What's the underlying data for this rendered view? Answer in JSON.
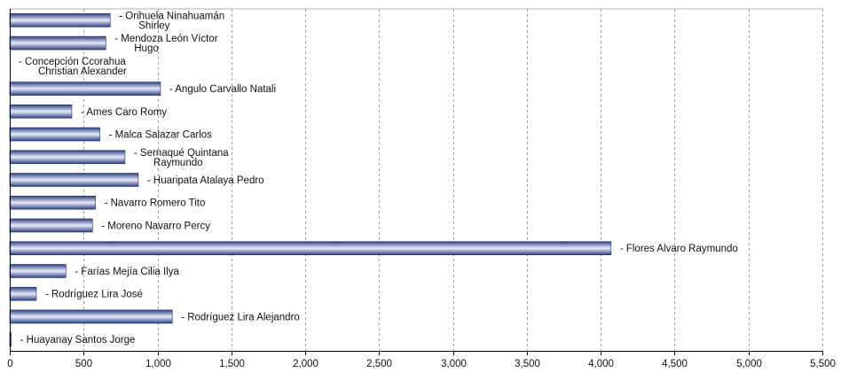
{
  "chart_data": {
    "type": "bar",
    "orientation": "horizontal",
    "title": "",
    "xlabel": "",
    "ylabel": "",
    "xlim": [
      0,
      5500
    ],
    "xticks": [
      0,
      500,
      1000,
      1500,
      2000,
      2500,
      3000,
      3500,
      4000,
      4500,
      5000,
      5500
    ],
    "xtick_labels": [
      "0",
      "500",
      "1,000",
      "1,500",
      "2,000",
      "2,500",
      "3,000",
      "3,500",
      "4,000",
      "4,500",
      "5,000",
      "5,500"
    ],
    "grid": "vertical-dashed",
    "bar_color": "#2c3f86",
    "bar_highlight": "#e8ecf8",
    "categories": [
      {
        "label": [
          "- Orihuela Ninahuamán",
          "Shirley"
        ],
        "value": 680
      },
      {
        "label": [
          "- Mendoza León Víctor",
          "Hugo"
        ],
        "value": 650
      },
      {
        "label": [
          "- Concepción Ccorahua",
          "Christian Alexander"
        ],
        "value": 0
      },
      {
        "label": [
          "- Angulo Carvallo Natali"
        ],
        "value": 1020
      },
      {
        "label": [
          "- Ames Caro Romy"
        ],
        "value": 420
      },
      {
        "label": [
          "- Malca Salazar Carlos"
        ],
        "value": 610
      },
      {
        "label": [
          "- Sernaqué Quintana",
          "Raymundo"
        ],
        "value": 780
      },
      {
        "label": [
          "- Huaripata Atalaya Pedro"
        ],
        "value": 870
      },
      {
        "label": [
          "- Navarro Romero Tito"
        ],
        "value": 580
      },
      {
        "label": [
          "- Moreno Navarro Percy"
        ],
        "value": 560
      },
      {
        "label": [
          "- Flores  Alvaro Raymundo"
        ],
        "value": 4070
      },
      {
        "label": [
          "- Farías Mejía Cilia Ilya"
        ],
        "value": 380
      },
      {
        "label": [
          "- Rodríguez Lira José"
        ],
        "value": 180
      },
      {
        "label": [
          "- Rodríguez Lira Alejandro"
        ],
        "value": 1100
      },
      {
        "label": [
          "- Huayanay Santos Jorge"
        ],
        "value": 10
      }
    ]
  }
}
